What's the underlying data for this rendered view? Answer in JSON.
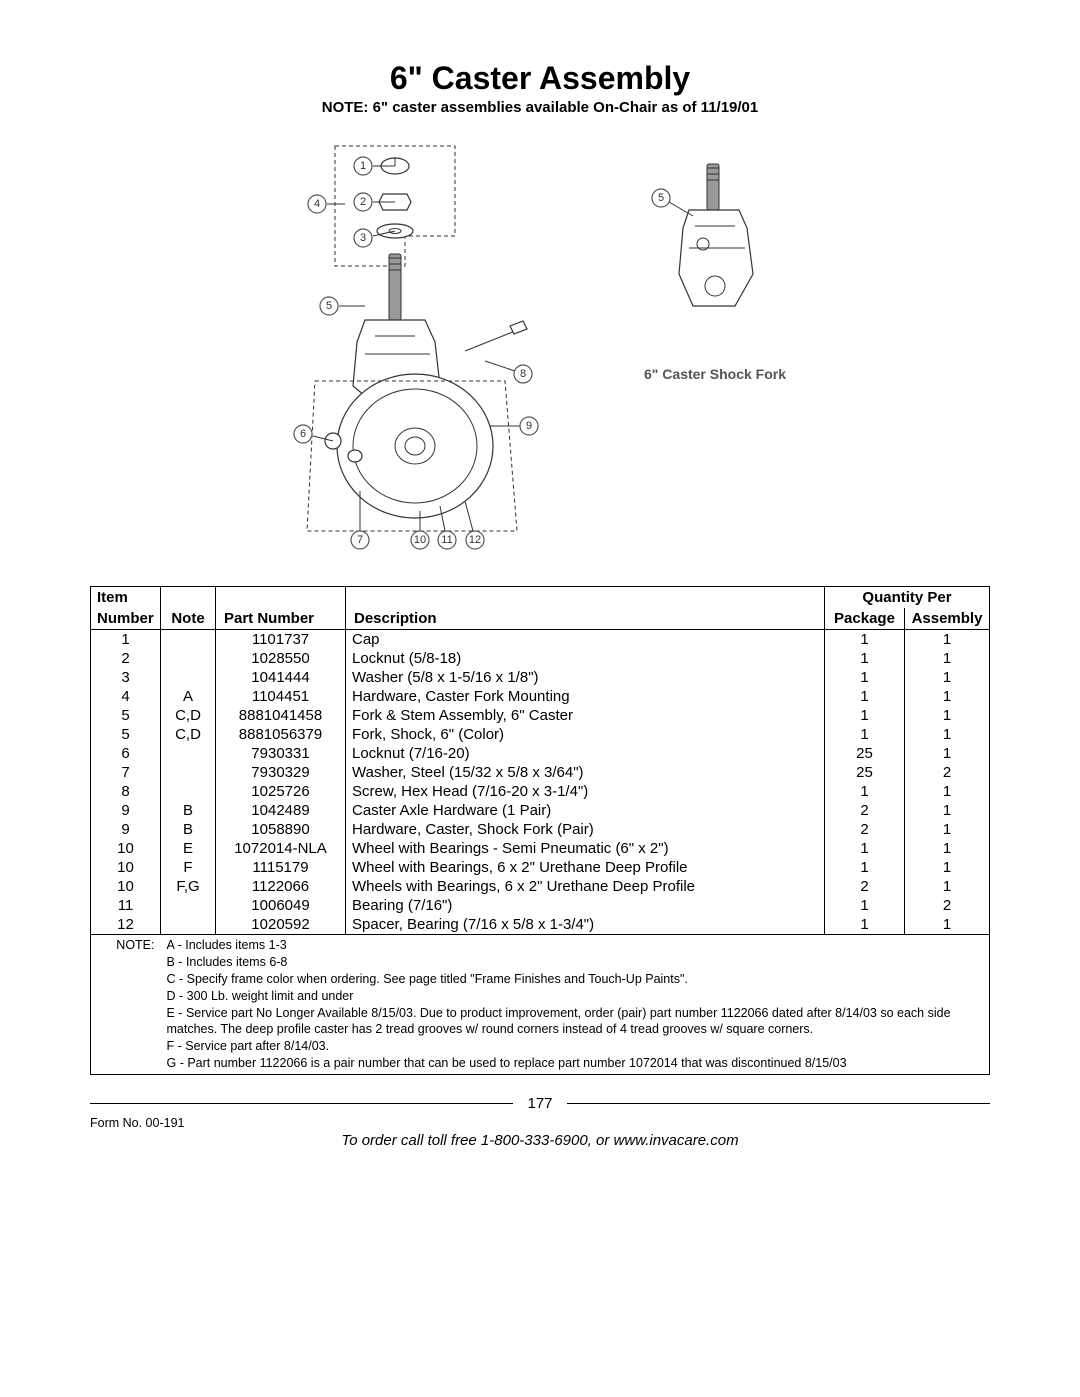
{
  "title": "6\" Caster Assembly",
  "subtitle": "NOTE: 6\" caster assemblies available On-Chair as of 11/19/01",
  "side_caption": "6\" Caster Shock Fork",
  "table": {
    "headers": {
      "item": "Item",
      "number": "Number",
      "note": "Note",
      "partnum": "Part Number",
      "desc": "Description",
      "qty": "Quantity Per",
      "pkg": "Package",
      "asm": "Assembly"
    },
    "rows": [
      {
        "item": "1",
        "note": "",
        "pn": "1101737",
        "desc": "Cap",
        "pkg": "1",
        "asm": "1"
      },
      {
        "item": "2",
        "note": "",
        "pn": "1028550",
        "desc": "Locknut (5/8-18)",
        "pkg": "1",
        "asm": "1"
      },
      {
        "item": "3",
        "note": "",
        "pn": "1041444",
        "desc": "Washer (5/8 x 1-5/16 x 1/8\")",
        "pkg": "1",
        "asm": "1"
      },
      {
        "item": "4",
        "note": "A",
        "pn": "1104451",
        "desc": "Hardware, Caster Fork Mounting",
        "pkg": "1",
        "asm": "1"
      },
      {
        "item": "5",
        "note": "C,D",
        "pn": "8881041458",
        "desc": "Fork & Stem Assembly, 6\" Caster",
        "pkg": "1",
        "asm": "1"
      },
      {
        "item": "5",
        "note": "C,D",
        "pn": "8881056379",
        "desc": "Fork, Shock, 6\" (Color)",
        "pkg": "1",
        "asm": "1"
      },
      {
        "item": "6",
        "note": "",
        "pn": "7930331",
        "desc": "Locknut  (7/16-20)",
        "pkg": "25",
        "asm": "1"
      },
      {
        "item": "7",
        "note": "",
        "pn": "7930329",
        "desc": "Washer, Steel (15/32 x 5/8 x 3/64\")",
        "pkg": "25",
        "asm": "2"
      },
      {
        "item": "8",
        "note": "",
        "pn": "1025726",
        "desc": "Screw, Hex Head (7/16-20 x 3-1/4\")",
        "pkg": "1",
        "asm": "1"
      },
      {
        "item": "9",
        "note": "B",
        "pn": "1042489",
        "desc": "Caster Axle Hardware (1 Pair)",
        "pkg": "2",
        "asm": "1"
      },
      {
        "item": "9",
        "note": "B",
        "pn": "1058890",
        "desc": "Hardware, Caster, Shock Fork (Pair)",
        "pkg": "2",
        "asm": "1"
      },
      {
        "item": "10",
        "note": "E",
        "pn": "1072014-NLA",
        "desc": "Wheel with Bearings - Semi Pneumatic (6\" x 2\")",
        "pkg": "1",
        "asm": "1"
      },
      {
        "item": "10",
        "note": "F",
        "pn": "1115179",
        "desc": "Wheel with Bearings, 6 x 2\" Urethane Deep Profile",
        "pkg": "1",
        "asm": "1"
      },
      {
        "item": "10",
        "note": "F,G",
        "pn": "1122066",
        "desc": "Wheels with Bearings, 6 x 2\" Urethane Deep Profile",
        "pkg": "2",
        "asm": "1"
      },
      {
        "item": "11",
        "note": "",
        "pn": "1006049",
        "desc": "Bearing (7/16\")",
        "pkg": "1",
        "asm": "2"
      },
      {
        "item": "12",
        "note": "",
        "pn": "1020592",
        "desc": "Spacer, Bearing (7/16 x 5/8 x 1-3/4\")",
        "pkg": "1",
        "asm": "1"
      }
    ],
    "notes_label": "NOTE:",
    "notes": [
      "A - Includes items 1-3",
      "B - Includes items 6-8",
      "C - Specify frame color when ordering. See page titled \"Frame Finishes and Touch-Up Paints\".",
      "D - 300 Lb. weight limit and under",
      "E - Service part No Longer Available 8/15/03. Due to product improvement, order (pair) part number 1122066 dated after 8/14/03 so each side matches. The deep profile caster has 2 tread grooves w/ round corners instead of 4 tread grooves w/ square corners.",
      "F - Service part after 8/14/03.",
      "G - Part number 1122066 is a pair number that can be used to replace part number 1072014 that was discontinued 8/15/03"
    ]
  },
  "footer": {
    "page": "177",
    "form": "Form No. 00-191",
    "order": "To order call toll free 1-800-333-6900, or www.invacare.com"
  },
  "callouts_main": [
    "1",
    "2",
    "3",
    "4",
    "5",
    "6",
    "7",
    "8",
    "9",
    "10",
    "11",
    "12"
  ],
  "callouts_side": [
    "5"
  ]
}
